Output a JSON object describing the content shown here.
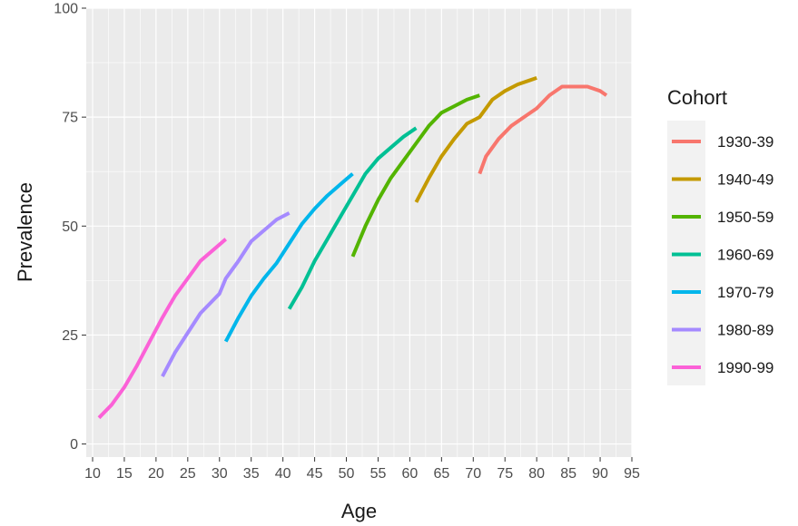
{
  "chart_data": {
    "type": "line",
    "xlabel": "Age",
    "ylabel": "Prevalence",
    "xlim": [
      9,
      95
    ],
    "ylim": [
      -3,
      100
    ],
    "x_ticks": [
      10,
      15,
      20,
      25,
      30,
      35,
      40,
      45,
      50,
      55,
      60,
      65,
      70,
      75,
      80,
      85,
      90,
      95
    ],
    "y_ticks": [
      0,
      25,
      50,
      75,
      100
    ],
    "grid": true,
    "legend": {
      "title": "Cohort",
      "position": "right"
    },
    "series": [
      {
        "name": "1930-39",
        "color": "#F8766D",
        "x": [
          71,
          72,
          74,
          76,
          78,
          80,
          82,
          84,
          86,
          88,
          90,
          91
        ],
        "y": [
          62,
          66,
          70,
          73,
          75,
          77,
          80,
          82,
          82,
          82,
          81,
          80
        ]
      },
      {
        "name": "1940-49",
        "color": "#C49A00",
        "x": [
          61,
          63,
          65,
          67,
          69,
          71,
          73,
          75,
          77,
          79,
          80
        ],
        "y": [
          55.5,
          61,
          66,
          70,
          73.5,
          75,
          79,
          81,
          82.5,
          83.5,
          84
        ]
      },
      {
        "name": "1950-59",
        "color": "#53B400",
        "x": [
          51,
          53,
          55,
          57,
          59,
          61,
          63,
          65,
          67,
          69,
          71
        ],
        "y": [
          43,
          50,
          56,
          61,
          65,
          69,
          73,
          76,
          77.5,
          79,
          80
        ]
      },
      {
        "name": "1960-69",
        "color": "#00C094",
        "x": [
          41,
          43,
          45,
          47,
          49,
          51,
          53,
          55,
          57,
          59,
          61
        ],
        "y": [
          31,
          36,
          42,
          47,
          52,
          57,
          62,
          65.5,
          68,
          70.5,
          72.5
        ]
      },
      {
        "name": "1970-79",
        "color": "#00B6EB",
        "x": [
          31,
          33,
          35,
          37,
          39,
          41,
          43,
          45,
          47,
          49,
          51
        ],
        "y": [
          23.5,
          29,
          34,
          38,
          41.5,
          46,
          50.5,
          54,
          57,
          59.5,
          62
        ]
      },
      {
        "name": "1980-89",
        "color": "#A58AFF",
        "x": [
          21,
          23,
          25,
          27,
          29,
          30,
          31,
          33,
          35,
          37,
          39,
          41
        ],
        "y": [
          15.5,
          21,
          25.5,
          30,
          33,
          34.5,
          38,
          42,
          46.5,
          49,
          51.5,
          53
        ]
      },
      {
        "name": "1990-99",
        "color": "#FB61D7",
        "x": [
          11,
          13,
          15,
          17,
          19,
          21,
          22,
          23,
          25,
          27,
          29,
          31
        ],
        "y": [
          6,
          9,
          13,
          18,
          23.5,
          29,
          31.5,
          34,
          38,
          42,
          44.5,
          47
        ]
      }
    ]
  }
}
